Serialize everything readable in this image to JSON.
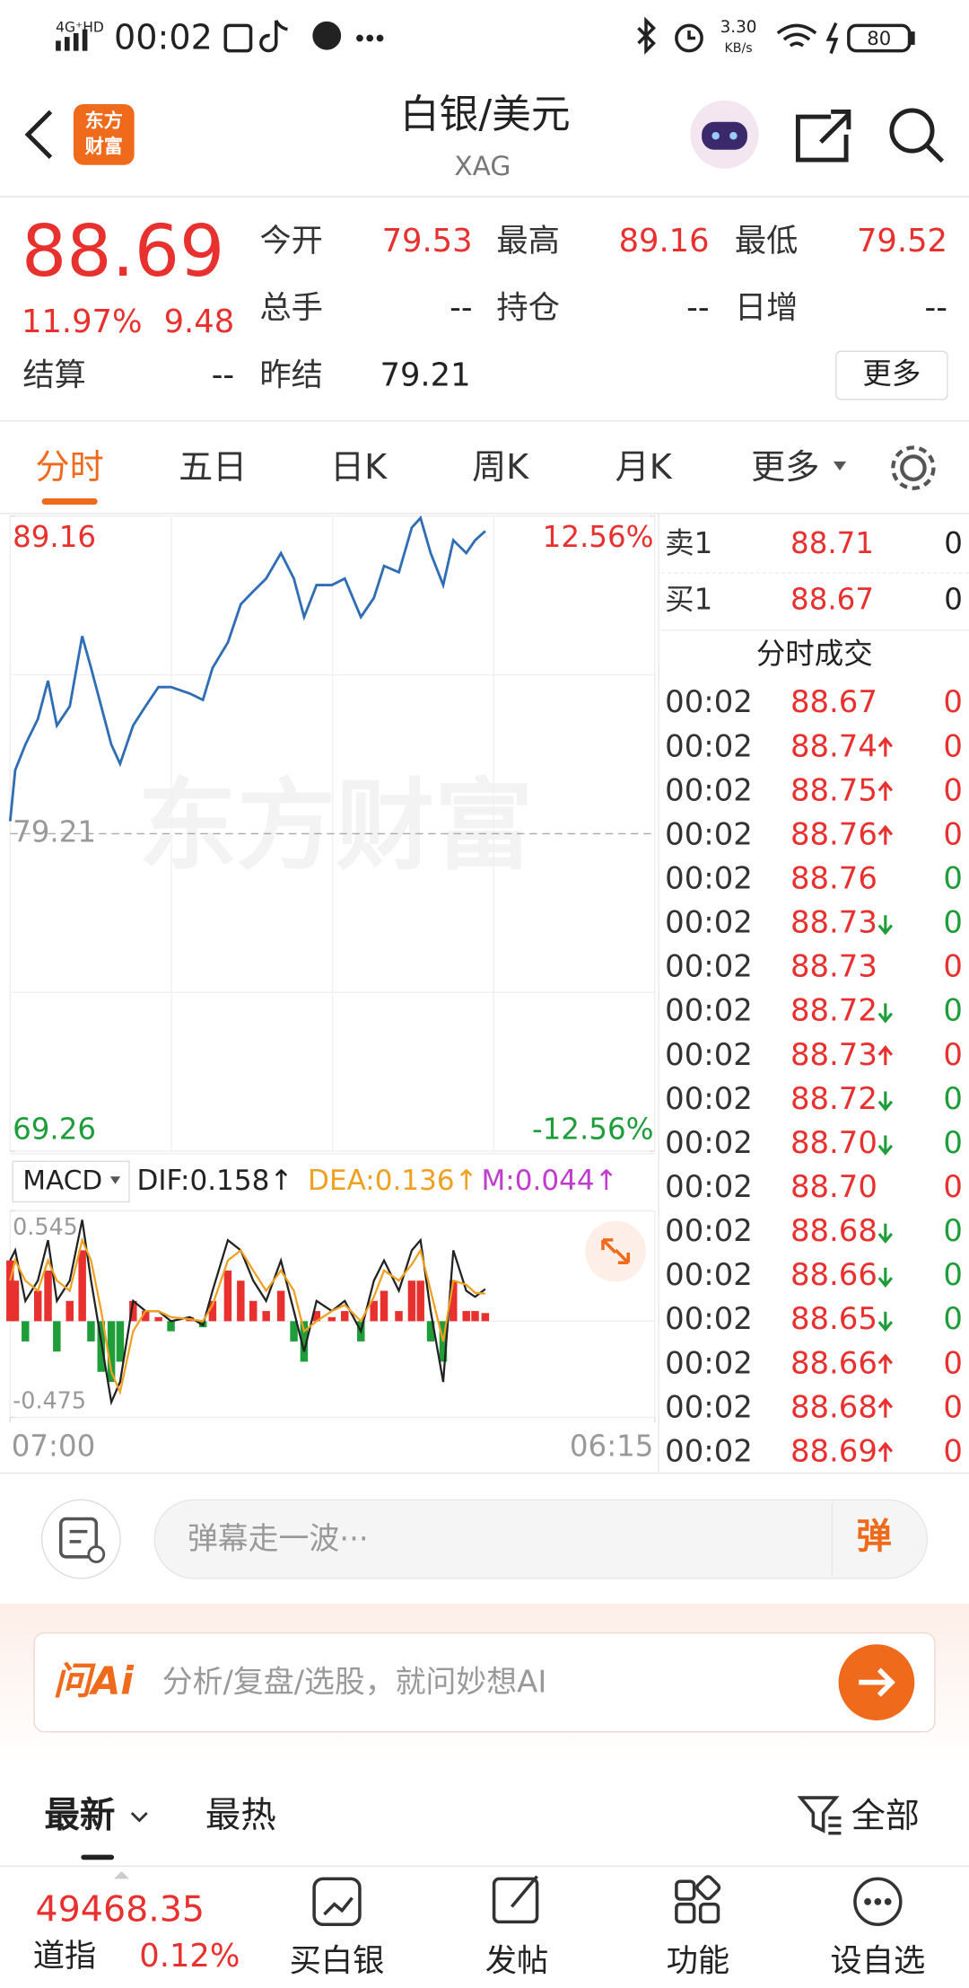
{
  "status_bar": {
    "network": "4G⁺HD",
    "time": "00:02",
    "speed": "3.30",
    "speed_unit": "KB/s",
    "battery": "80"
  },
  "header": {
    "logo": [
      "东方",
      "财富"
    ],
    "title": "白银/美元",
    "symbol": "XAG"
  },
  "quote": {
    "price": "88.69",
    "change_pct": "11.97%",
    "change": "9.48",
    "fields": [
      {
        "label": "今开",
        "value": "79.53"
      },
      {
        "label": "最高",
        "value": "89.16"
      },
      {
        "label": "最低",
        "value": "79.52"
      },
      {
        "label": "总手",
        "value": "--"
      },
      {
        "label": "持仓",
        "value": "--"
      },
      {
        "label": "日增",
        "value": "--"
      },
      {
        "label": "结算",
        "value": "--"
      },
      {
        "label": "昨结",
        "value": "79.21"
      }
    ],
    "more": "更多"
  },
  "tabs": [
    "分时",
    "五日",
    "日K",
    "周K",
    "月K",
    "更多"
  ],
  "chart_data": [
    {
      "type": "line",
      "watermark": "东方财富",
      "x": [
        0,
        11,
        33,
        60,
        82,
        101,
        129,
        156,
        175,
        197,
        219,
        238,
        266,
        293,
        321,
        348,
        389,
        417,
        438,
        471,
        499,
        526,
        554,
        586,
        614,
        636,
        663,
        696,
        724,
        759,
        787,
        809,
        841,
        869,
        888,
        910,
        937,
        959,
        987,
        1006,
        1028
      ],
      "xlim": [
        0,
        1395
      ],
      "series": [
        {
          "color": "#2f6db5",
          "values": [
            79.6,
            81.2,
            82,
            82.8,
            84,
            82.6,
            83.2,
            85.4,
            84.4,
            83.2,
            82,
            81.4,
            82.6,
            83.2,
            83.8,
            83.8,
            83.6,
            83.4,
            84.4,
            85.2,
            86.4,
            86.8,
            87.2,
            88,
            87.2,
            86,
            87,
            87,
            87.2,
            86,
            86.6,
            87.6,
            87.4,
            88.8,
            89.1,
            88,
            87,
            88.4,
            88,
            88.4,
            88.69
          ]
        }
      ],
      "ylim": [
        69.26,
        89.16
      ],
      "yticks": [
        69.26,
        79.21,
        89.16
      ],
      "y2lim": [
        -12.56,
        12.56
      ],
      "y2ticks": [
        {
          "value": -12.56,
          "label": "-12.56%"
        },
        {
          "value": 12.56,
          "label": "12.56%"
        }
      ],
      "grid": true
    },
    {
      "type": "macd",
      "indicator": "MACD",
      "x": [
        0,
        11,
        33,
        60,
        82,
        101,
        129,
        156,
        175,
        197,
        219,
        238,
        266,
        293,
        321,
        348,
        389,
        417,
        438,
        471,
        499,
        526,
        554,
        586,
        614,
        636,
        663,
        696,
        724,
        759,
        787,
        809,
        841,
        869,
        888,
        910,
        937,
        959,
        987,
        1006,
        1028
      ],
      "xlim": [
        0,
        1395
      ],
      "xticks": [
        {
          "value": 0,
          "label": "07:00"
        },
        {
          "value": 1395,
          "label": "06:15"
        }
      ],
      "ylim": [
        -0.475,
        0.545
      ],
      "yticks": [
        -0.475,
        0.545
      ],
      "series": [
        {
          "name": "DIF:0.158↑",
          "color": "#222222",
          "values": [
            0.3,
            0.35,
            0.1,
            0.2,
            0.4,
            0.1,
            0.2,
            0.5,
            0.2,
            -0.1,
            -0.4,
            -0.3,
            0.1,
            0.05,
            0.05,
            0,
            0.02,
            -0.02,
            0.15,
            0.4,
            0.35,
            0.2,
            0.1,
            0.3,
            0.05,
            -0.15,
            0.1,
            0.05,
            0.1,
            -0.05,
            0.2,
            0.3,
            0.15,
            0.35,
            0.4,
            0.05,
            -0.3,
            0.35,
            0.15,
            0.12,
            0.158
          ]
        },
        {
          "name": "DEA:0.136↑",
          "color": "#f0a020",
          "values": [
            0.2,
            0.3,
            0.2,
            0.15,
            0.3,
            0.2,
            0.15,
            0.4,
            0.3,
            0.05,
            -0.25,
            -0.35,
            -0.05,
            0.05,
            0.05,
            0.02,
            0.01,
            0,
            0.08,
            0.3,
            0.35,
            0.25,
            0.15,
            0.25,
            0.15,
            -0.05,
            0,
            0.05,
            0.08,
            0,
            0.12,
            0.25,
            0.2,
            0.28,
            0.35,
            0.15,
            -0.1,
            0.2,
            0.18,
            0.14,
            0.136
          ]
        },
        {
          "name": "M:0.044↑",
          "color": "#c03ccf",
          "up_color": "#e8312f",
          "down_color": "#1f9d3a",
          "values": [
            0.3,
            0.2,
            -0.1,
            0.15,
            0.25,
            -0.15,
            0.1,
            0.35,
            -0.1,
            -0.25,
            -0.3,
            -0.2,
            0.1,
            0.05,
            0.02,
            -0.05,
            0.02,
            -0.03,
            0.1,
            0.25,
            0.2,
            0.1,
            0.05,
            0.15,
            -0.1,
            -0.2,
            0.05,
            0.02,
            0.05,
            -0.1,
            0.1,
            0.15,
            0.05,
            0.2,
            0.2,
            -0.1,
            -0.2,
            0.2,
            0.05,
            0.05,
            0.04
          ]
        }
      ]
    }
  ],
  "order_book": {
    "asks": [
      {
        "label": "卖1",
        "price": "88.71",
        "volume": "0"
      }
    ],
    "bids": [
      {
        "label": "买1",
        "price": "88.67",
        "volume": "0"
      }
    ]
  },
  "trades": {
    "title": "分时成交",
    "rows": [
      {
        "time": "00:02",
        "price": "88.67",
        "dir": null,
        "volume": "0",
        "color": "#e8312f"
      },
      {
        "time": "00:02",
        "price": "88.74",
        "dir": "up",
        "volume": "0",
        "color": "#e8312f"
      },
      {
        "time": "00:02",
        "price": "88.75",
        "dir": "up",
        "volume": "0",
        "color": "#e8312f"
      },
      {
        "time": "00:02",
        "price": "88.76",
        "dir": "up",
        "volume": "0",
        "color": "#e8312f"
      },
      {
        "time": "00:02",
        "price": "88.76",
        "dir": null,
        "volume": "0",
        "color": "#1f9d3a"
      },
      {
        "time": "00:02",
        "price": "88.73",
        "dir": "down",
        "volume": "0",
        "color": "#1f9d3a"
      },
      {
        "time": "00:02",
        "price": "88.73",
        "dir": null,
        "volume": "0",
        "color": "#e8312f"
      },
      {
        "time": "00:02",
        "price": "88.72",
        "dir": "down",
        "volume": "0",
        "color": "#1f9d3a"
      },
      {
        "time": "00:02",
        "price": "88.73",
        "dir": "up",
        "volume": "0",
        "color": "#e8312f"
      },
      {
        "time": "00:02",
        "price": "88.72",
        "dir": "down",
        "volume": "0",
        "color": "#1f9d3a"
      },
      {
        "time": "00:02",
        "price": "88.70",
        "dir": "down",
        "volume": "0",
        "color": "#1f9d3a"
      },
      {
        "time": "00:02",
        "price": "88.70",
        "dir": null,
        "volume": "0",
        "color": "#e8312f"
      },
      {
        "time": "00:02",
        "price": "88.68",
        "dir": "down",
        "volume": "0",
        "color": "#1f9d3a"
      },
      {
        "time": "00:02",
        "price": "88.66",
        "dir": "down",
        "volume": "0",
        "color": "#1f9d3a"
      },
      {
        "time": "00:02",
        "price": "88.65",
        "dir": "down",
        "volume": "0",
        "color": "#1f9d3a"
      },
      {
        "time": "00:02",
        "price": "88.66",
        "dir": "up",
        "volume": "0",
        "color": "#e8312f"
      },
      {
        "time": "00:02",
        "price": "88.68",
        "dir": "up",
        "volume": "0",
        "color": "#e8312f"
      },
      {
        "time": "00:02",
        "price": "88.69",
        "dir": "up",
        "volume": "0",
        "color": "#e8312f"
      }
    ]
  },
  "danmaku": {
    "placeholder": "弹幕走一波···",
    "button": "弹"
  },
  "ai": {
    "logo": "问Ai",
    "placeholder": "分析/复盘/选股，就问妙想AI"
  },
  "feed_tabs": {
    "tabs": [
      "最新",
      "最热"
    ],
    "filter": "全部"
  },
  "bottom_bar": {
    "index_value": "49468.35",
    "index_name": "道指",
    "index_change": "0.12%",
    "actions": [
      "买白银",
      "发帖",
      "功能",
      "设自选"
    ]
  }
}
